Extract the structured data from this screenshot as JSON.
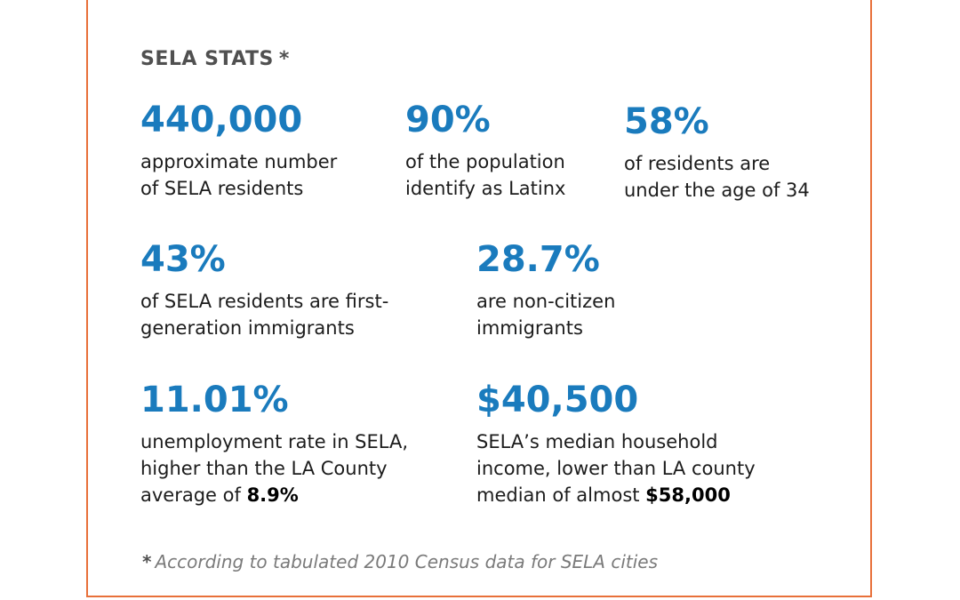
{
  "heading": {
    "title": "SELA STATS",
    "marker": "*"
  },
  "stats": [
    {
      "value": "440,000",
      "lines": [
        "approximate number",
        "of SELA residents"
      ]
    },
    {
      "value": "90%",
      "lines": [
        "of the population",
        "identify as Latinx"
      ]
    },
    {
      "value": "58%",
      "lines": [
        "of residents are",
        "under the age of 34"
      ]
    },
    {
      "value": "43%",
      "lines": [
        "of SELA residents are first-",
        "generation immigrants"
      ]
    },
    {
      "value": "28.7%",
      "lines": [
        "are non-citizen",
        "immigrants"
      ]
    },
    {
      "value": "11.01%",
      "lines": [
        "unemployment rate in SELA,",
        "higher than the LA County"
      ],
      "last_prefix": "average of ",
      "last_bold": "8.9%"
    },
    {
      "value": "$40,500",
      "lines": [
        "SELA’s median household",
        "income, lower than LA county"
      ],
      "last_prefix": "median of almost ",
      "last_bold": "$58,000"
    }
  ],
  "footnote": {
    "marker": "*",
    "text": "According to tabulated 2010 Census data for SELA cities"
  },
  "colors": {
    "border": "#e8703a",
    "value": "#1a7bbd",
    "heading": "#505050",
    "footnote": "#7a7a7a"
  }
}
